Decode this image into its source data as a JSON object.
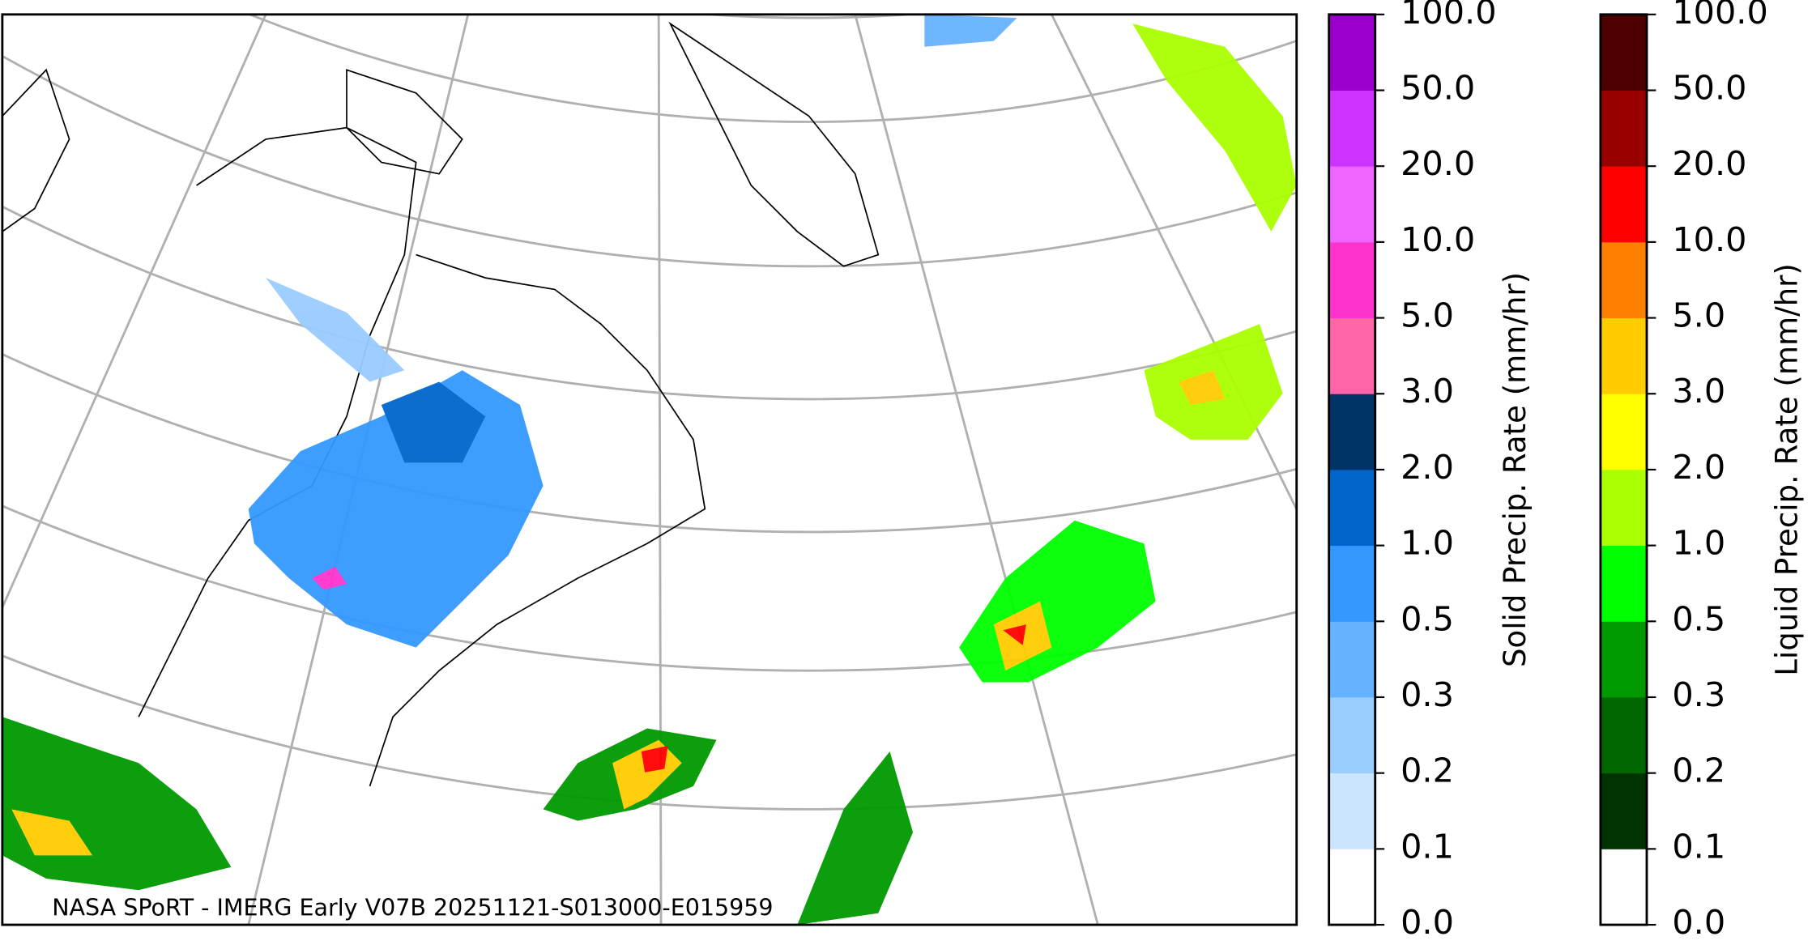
{
  "map": {
    "credit": "NASA SPoRT - IMERG Early V07B 20251121-S013000-E015959"
  },
  "colorbars": [
    {
      "label": "Solid Precip. Rate (mm/hr)",
      "ticks": [
        "0.0",
        "0.1",
        "0.2",
        "0.3",
        "0.5",
        "1.0",
        "2.0",
        "3.0",
        "5.0",
        "10.0",
        "20.0",
        "50.0",
        "100.0"
      ],
      "colors": [
        "#ffffff",
        "#cce5ff",
        "#99ccff",
        "#66b2ff",
        "#3399ff",
        "#0066cc",
        "#003366",
        "#ff66aa",
        "#ff33cc",
        "#ee66ff",
        "#cc33ff",
        "#9900cc"
      ]
    },
    {
      "label": "Liquid Precip. Rate (mm/hr)",
      "ticks": [
        "0.0",
        "0.1",
        "0.2",
        "0.3",
        "0.5",
        "1.0",
        "2.0",
        "3.0",
        "5.0",
        "10.0",
        "20.0",
        "50.0",
        "100.0"
      ],
      "colors": [
        "#ffffff",
        "#003300",
        "#006600",
        "#009900",
        "#00ff00",
        "#aaff00",
        "#ffff00",
        "#ffcc00",
        "#ff8000",
        "#ff0000",
        "#990000",
        "#4d0000"
      ]
    }
  ]
}
